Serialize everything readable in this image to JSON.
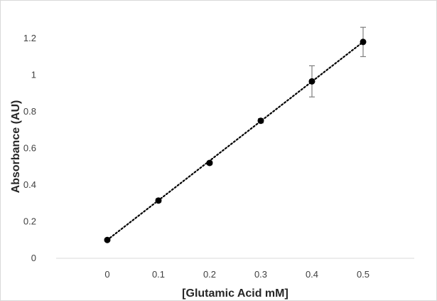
{
  "chart_data": {
    "type": "scatter",
    "xlabel": "[Glutamic Acid mM]",
    "ylabel": "Absorbance (AU)",
    "xlim": [
      -0.1,
      0.6
    ],
    "ylim": [
      0,
      1.3
    ],
    "x_ticks": [
      "0",
      "0.1",
      "0.2",
      "0.3",
      "0.4",
      "0.5"
    ],
    "y_ticks": [
      "0",
      "0.2",
      "0.4",
      "0.6",
      "0.8",
      "1",
      "1.2"
    ],
    "grid": false,
    "legend": "none",
    "series": [
      {
        "x": [
          0,
          0.1,
          0.2,
          0.3,
          0.4,
          0.5
        ],
        "y": [
          0.1,
          0.315,
          0.52,
          0.75,
          0.965,
          1.18
        ],
        "error": [
          0.005,
          0.01,
          0.01,
          0.012,
          0.085,
          0.08
        ],
        "marker_color": "#000000",
        "error_bar_color": "#7f7f7f"
      }
    ],
    "trendline": {
      "style": "dotted",
      "type": "linear",
      "color": "#000000",
      "x_range": [
        0,
        0.5
      ],
      "y_range": [
        0.1,
        1.18
      ]
    }
  }
}
